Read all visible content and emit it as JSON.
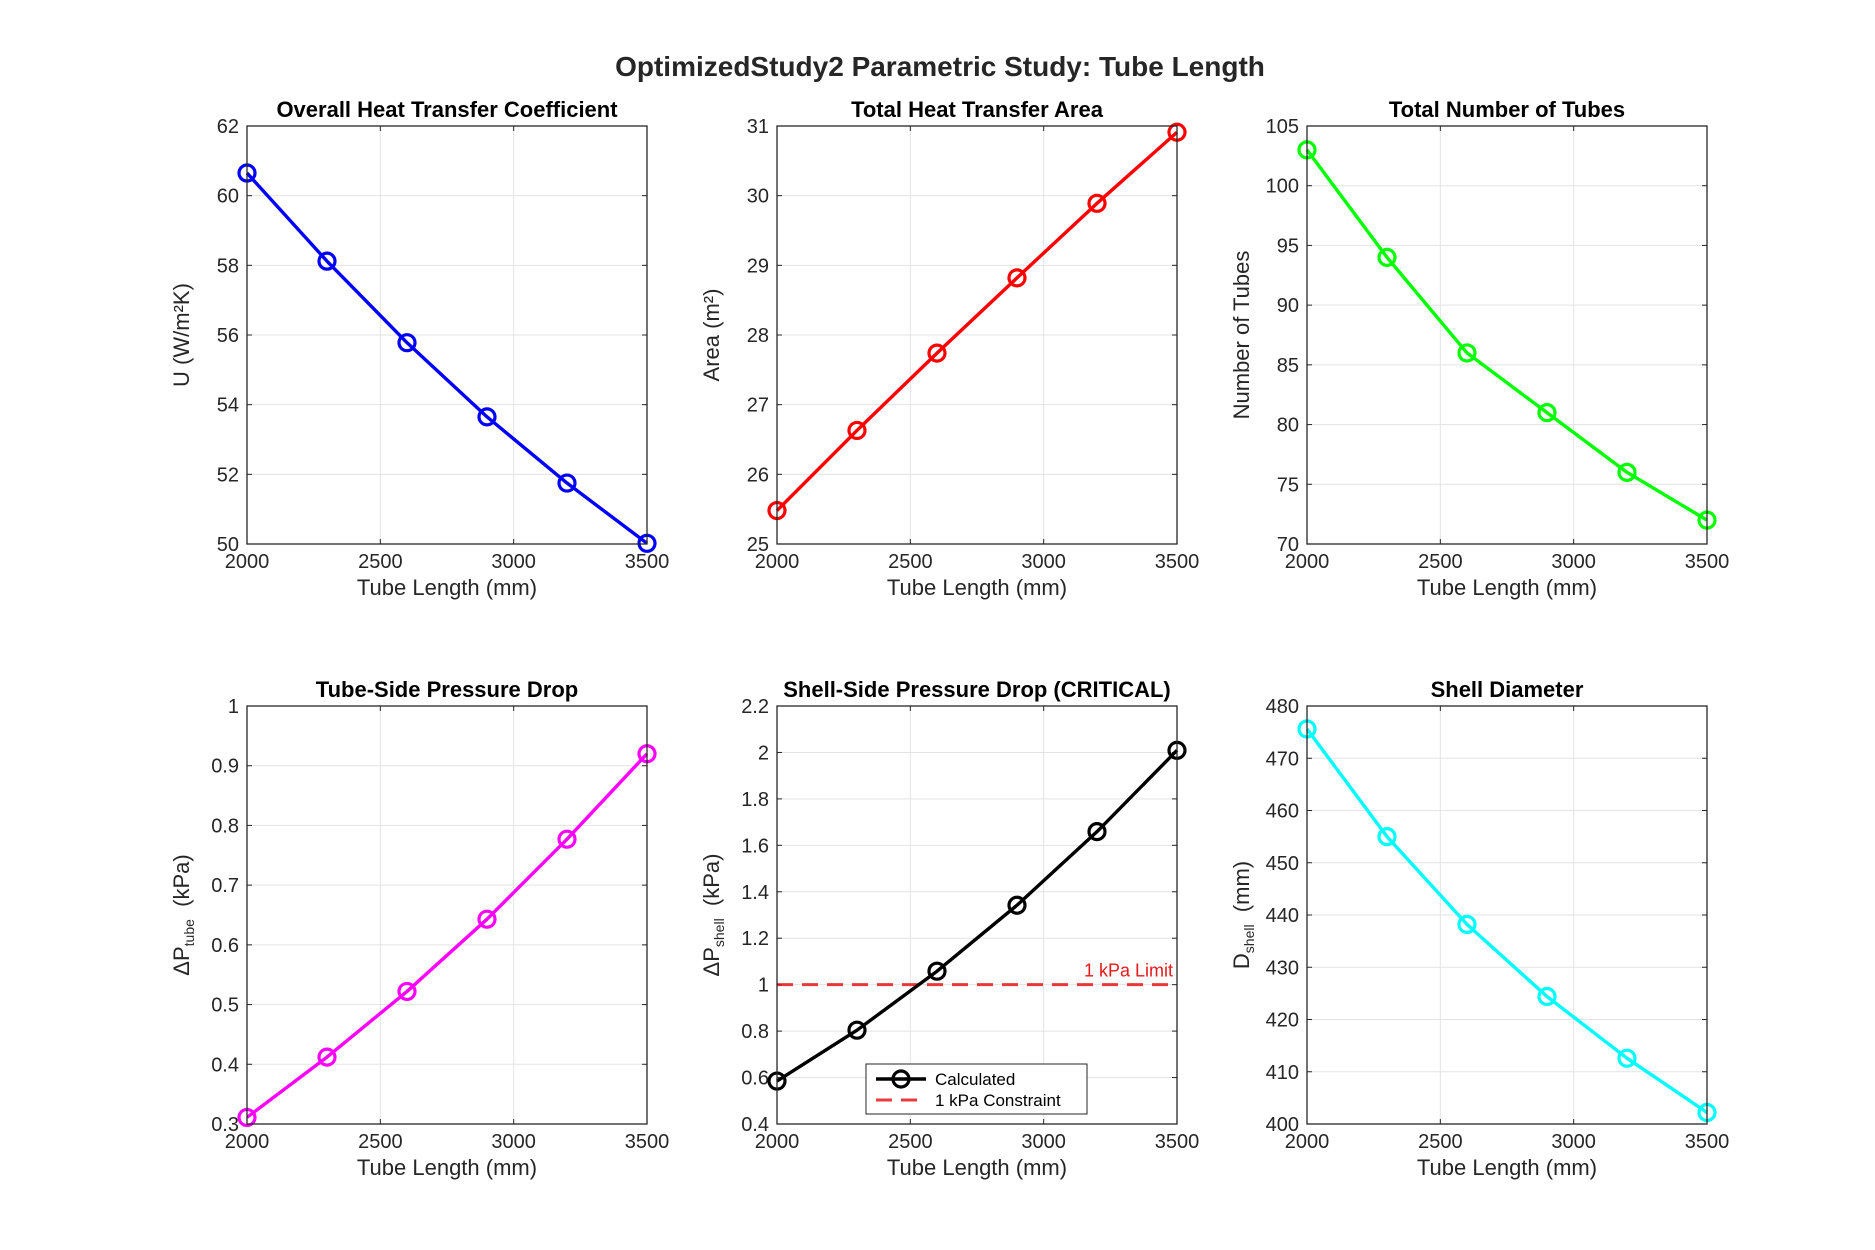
{
  "figure_title": "OptimizedStudy2 Parametric Study: Tube Length",
  "chart_data": [
    {
      "type": "line",
      "title": "Overall Heat Transfer Coefficient",
      "xlabel": "Tube Length (mm)",
      "ylabel": "U (W/m²K)",
      "x": [
        2000,
        2300,
        2600,
        2900,
        3200,
        3500
      ],
      "series": [
        {
          "values": [
            60.65,
            58.12,
            55.78,
            53.65,
            51.75,
            50.02
          ],
          "color": "#0000ff"
        }
      ],
      "xlim": [
        2000,
        3500
      ],
      "ylim": [
        50,
        62
      ],
      "xticks": [
        "2000",
        "2500",
        "3000",
        "3500"
      ],
      "yticks": [
        "50",
        "52",
        "54",
        "56",
        "58",
        "60",
        "62"
      ],
      "grid": true
    },
    {
      "type": "line",
      "title": "Total Heat Transfer Area",
      "xlabel": "Tube Length (mm)",
      "ylabel": "Area (m²)",
      "x": [
        2000,
        2300,
        2600,
        2900,
        3200,
        3500
      ],
      "series": [
        {
          "values": [
            25.48,
            26.63,
            27.74,
            28.82,
            29.89,
            30.91
          ],
          "color": "#ff0000"
        }
      ],
      "xlim": [
        2000,
        3500
      ],
      "ylim": [
        25,
        31
      ],
      "xticks": [
        "2000",
        "2500",
        "3000",
        "3500"
      ],
      "yticks": [
        "25",
        "26",
        "27",
        "28",
        "29",
        "30",
        "31"
      ],
      "grid": true
    },
    {
      "type": "line",
      "title": "Total Number of Tubes",
      "xlabel": "Tube Length (mm)",
      "ylabel": "Number of Tubes",
      "x": [
        2000,
        2300,
        2600,
        2900,
        3200,
        3500
      ],
      "series": [
        {
          "values": [
            103,
            94,
            86,
            81,
            76,
            72
          ],
          "color": "#00ff00"
        }
      ],
      "xlim": [
        2000,
        3500
      ],
      "ylim": [
        70,
        105
      ],
      "xticks": [
        "2000",
        "2500",
        "3000",
        "3500"
      ],
      "yticks": [
        "70",
        "75",
        "80",
        "85",
        "90",
        "95",
        "100",
        "105"
      ],
      "grid": true
    },
    {
      "type": "line",
      "title": "Tube-Side Pressure Drop",
      "xlabel": "Tube Length (mm)",
      "ylabel": {
        "main": "ΔP",
        "sub": "tube",
        "unit": "(kPa)"
      },
      "x": [
        2000,
        2300,
        2600,
        2900,
        3200,
        3500
      ],
      "series": [
        {
          "values": [
            0.311,
            0.412,
            0.522,
            0.643,
            0.777,
            0.92
          ],
          "color": "#ff00ff"
        }
      ],
      "xlim": [
        2000,
        3500
      ],
      "ylim": [
        0.3,
        1.0
      ],
      "xticks": [
        "2000",
        "2500",
        "3000",
        "3500"
      ],
      "yticks": [
        "0.3",
        "0.4",
        "0.5",
        "0.6",
        "0.7",
        "0.8",
        "0.9",
        "1"
      ],
      "grid": true
    },
    {
      "type": "line",
      "title": "Shell-Side Pressure Drop (CRITICAL)",
      "xlabel": "Tube Length (mm)",
      "ylabel": {
        "main": "ΔP",
        "sub": "shell",
        "unit": "(kPa)"
      },
      "x": [
        2000,
        2300,
        2600,
        2900,
        3200,
        3500
      ],
      "series": [
        {
          "name": "Calculated",
          "values": [
            0.585,
            0.804,
            1.058,
            1.342,
            1.659,
            2.009
          ],
          "color": "#000000"
        }
      ],
      "hline": {
        "y": 1.0,
        "name": "1 kPa Constraint",
        "label": "1 kPa Limit",
        "color": "#e6191a"
      },
      "xlim": [
        2000,
        3500
      ],
      "ylim": [
        0.4,
        2.2
      ],
      "xticks": [
        "2000",
        "2500",
        "3000",
        "3500"
      ],
      "yticks": [
        "0.4",
        "0.6",
        "0.8",
        "1",
        "1.2",
        "1.4",
        "1.6",
        "1.8",
        "2",
        "2.2"
      ],
      "grid": true,
      "legend": "bottom"
    },
    {
      "type": "line",
      "title": "Shell Diameter",
      "xlabel": "Tube Length (mm)",
      "ylabel": {
        "main": "D",
        "sub": "shell",
        "unit": "(mm)"
      },
      "x": [
        2000,
        2300,
        2600,
        2900,
        3200,
        3500
      ],
      "series": [
        {
          "values": [
            475.6,
            455.0,
            438.2,
            424.4,
            412.6,
            402.2
          ],
          "color": "#00ffff"
        }
      ],
      "xlim": [
        2000,
        3500
      ],
      "ylim": [
        400,
        480
      ],
      "xticks": [
        "2000",
        "2500",
        "3000",
        "3500"
      ],
      "yticks": [
        "400",
        "410",
        "420",
        "430",
        "440",
        "450",
        "460",
        "470",
        "480"
      ],
      "grid": true
    }
  ]
}
